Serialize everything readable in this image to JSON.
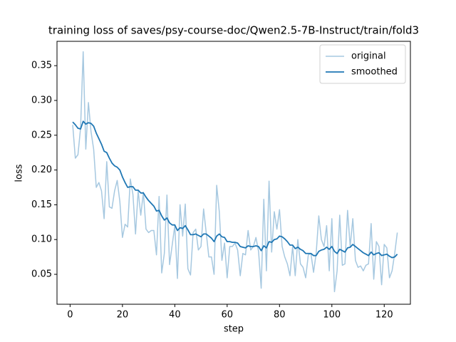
{
  "chart_data": {
    "type": "line",
    "title": "training loss of saves/psy-course-doc/Qwen2.5-7B-Instruct/train/fold3",
    "xlabel": "step",
    "ylabel": "loss",
    "x": [
      1,
      2,
      3,
      4,
      5,
      6,
      7,
      8,
      9,
      10,
      11,
      12,
      13,
      14,
      15,
      16,
      17,
      18,
      19,
      20,
      21,
      22,
      23,
      24,
      25,
      26,
      27,
      28,
      29,
      30,
      31,
      32,
      33,
      34,
      35,
      36,
      37,
      38,
      39,
      40,
      41,
      42,
      43,
      44,
      45,
      46,
      47,
      48,
      49,
      50,
      51,
      52,
      53,
      54,
      55,
      56,
      57,
      58,
      59,
      60,
      61,
      62,
      63,
      64,
      65,
      66,
      67,
      68,
      69,
      70,
      71,
      72,
      73,
      74,
      75,
      76,
      77,
      78,
      79,
      80,
      81,
      82,
      83,
      84,
      85,
      86,
      87,
      88,
      89,
      90,
      91,
      92,
      93,
      94,
      95,
      96,
      97,
      98,
      99,
      100,
      101,
      102,
      103,
      104,
      105,
      106,
      107,
      108,
      109,
      110,
      111,
      112,
      113,
      114,
      115,
      116,
      117,
      118,
      119,
      120,
      121,
      122,
      123,
      124,
      125
    ],
    "series": [
      {
        "name": "original",
        "color": "#a6c8e0",
        "values": [
          0.265,
          0.217,
          0.222,
          0.26,
          0.37,
          0.23,
          0.297,
          0.255,
          0.23,
          0.175,
          0.182,
          0.17,
          0.13,
          0.212,
          0.147,
          0.145,
          0.17,
          0.185,
          0.155,
          0.103,
          0.122,
          0.118,
          0.187,
          0.165,
          0.108,
          0.17,
          0.135,
          0.168,
          0.115,
          0.11,
          0.113,
          0.113,
          0.078,
          0.162,
          0.052,
          0.08,
          0.164,
          0.064,
          0.092,
          0.12,
          0.044,
          0.15,
          0.105,
          0.151,
          0.058,
          0.049,
          0.11,
          0.115,
          0.085,
          0.09,
          0.144,
          0.11,
          0.075,
          0.075,
          0.05,
          0.178,
          0.14,
          0.07,
          0.095,
          0.045,
          0.09,
          0.09,
          0.095,
          0.085,
          0.048,
          0.08,
          0.078,
          0.113,
          0.085,
          0.09,
          0.103,
          0.083,
          0.03,
          0.158,
          0.055,
          0.184,
          0.082,
          0.14,
          0.115,
          0.143,
          0.09,
          0.075,
          0.065,
          0.048,
          0.09,
          0.048,
          0.1,
          0.065,
          0.06,
          0.045,
          0.078,
          0.08,
          0.053,
          0.08,
          0.134,
          0.1,
          0.09,
          0.12,
          0.055,
          0.13,
          0.025,
          0.055,
          0.135,
          0.063,
          0.065,
          0.142,
          0.09,
          0.13,
          0.07,
          0.06,
          0.062,
          0.055,
          0.063,
          0.065,
          0.123,
          0.043,
          0.097,
          0.09,
          0.035,
          0.093,
          0.088,
          0.045,
          0.055,
          0.08,
          0.11
        ]
      },
      {
        "name": "smoothed",
        "color": "#1f77b4",
        "values": [
          0.269,
          0.265,
          0.26,
          0.259,
          0.27,
          0.266,
          0.268,
          0.267,
          0.263,
          0.253,
          0.245,
          0.237,
          0.227,
          0.225,
          0.217,
          0.21,
          0.206,
          0.204,
          0.2,
          0.19,
          0.182,
          0.175,
          0.176,
          0.176,
          0.171,
          0.171,
          0.167,
          0.167,
          0.161,
          0.156,
          0.152,
          0.148,
          0.141,
          0.142,
          0.134,
          0.128,
          0.131,
          0.124,
          0.121,
          0.121,
          0.113,
          0.117,
          0.116,
          0.12,
          0.114,
          0.107,
          0.107,
          0.108,
          0.106,
          0.104,
          0.108,
          0.108,
          0.105,
          0.102,
          0.097,
          0.105,
          0.108,
          0.104,
          0.103,
          0.097,
          0.097,
          0.096,
          0.096,
          0.095,
          0.09,
          0.089,
          0.088,
          0.091,
          0.09,
          0.09,
          0.091,
          0.09,
          0.084,
          0.091,
          0.088,
          0.097,
          0.096,
          0.1,
          0.101,
          0.105,
          0.104,
          0.101,
          0.097,
          0.092,
          0.092,
          0.087,
          0.089,
          0.086,
          0.084,
          0.08,
          0.08,
          0.08,
          0.077,
          0.077,
          0.083,
          0.085,
          0.086,
          0.089,
          0.086,
          0.09,
          0.083,
          0.08,
          0.086,
          0.084,
          0.082,
          0.088,
          0.089,
          0.093,
          0.09,
          0.087,
          0.084,
          0.081,
          0.079,
          0.077,
          0.082,
          0.078,
          0.08,
          0.081,
          0.077,
          0.078,
          0.079,
          0.076,
          0.074,
          0.075,
          0.079
        ]
      }
    ],
    "xlim": [
      -5,
      130
    ],
    "ylim": [
      0.007,
      0.385
    ],
    "xticks": [
      0,
      20,
      40,
      60,
      80,
      100,
      120
    ],
    "yticks": [
      0.05,
      {
        "value": 0.1,
        "label": "0.10"
      },
      0.15,
      {
        "value": 0.2,
        "label": "0.20"
      },
      0.25,
      {
        "value": 0.3,
        "label": "0.30"
      },
      0.35
    ],
    "legend": "upper right"
  }
}
